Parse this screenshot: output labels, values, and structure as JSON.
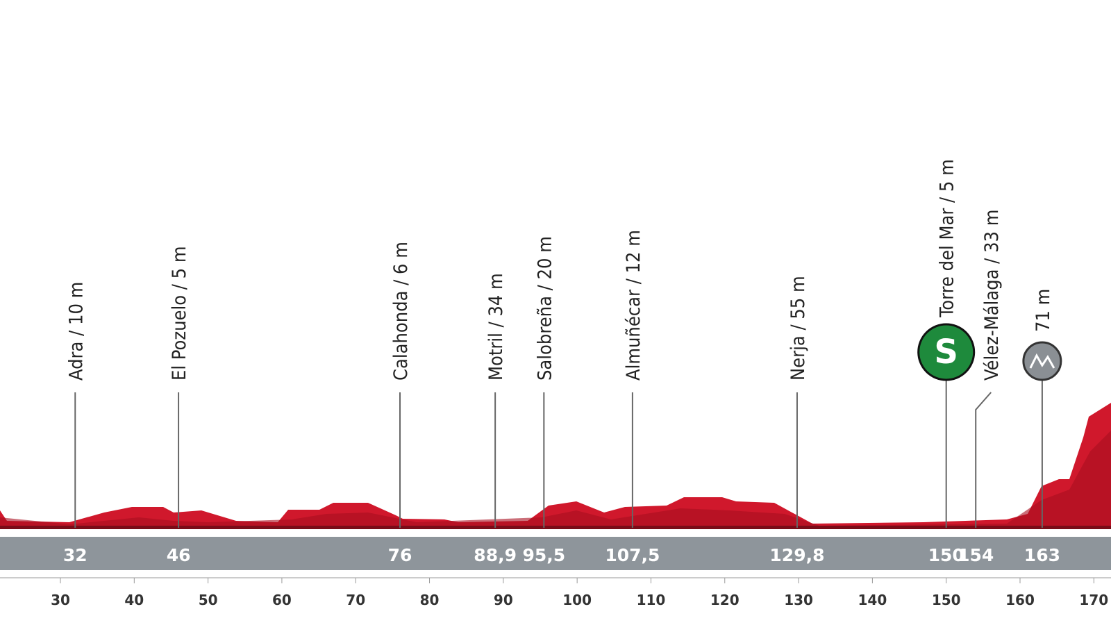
{
  "waypoints": [
    {
      "label": "Adra / 10 m",
      "km": 32
    },
    {
      "label": "El Pozuelo / 5 m",
      "km": 46
    },
    {
      "label": "Calahonda / 6 m",
      "km": 76
    },
    {
      "label": "Motril / 34 m",
      "km": {
        "value": 88.9,
        "label": "88,9"
      }
    },
    {
      "label": "Salobreña / 20 m",
      "km": {
        "value": 95.5,
        "label": "95,5"
      }
    },
    {
      "label": "Almuñécar / 12 m",
      "km": {
        "value": 107.5,
        "label": "107,5"
      }
    },
    {
      "label": "Nerja / 55 m",
      "km": {
        "value": 129.8,
        "label": "129,8"
      }
    },
    {
      "label": "Torre del Mar / 5 m",
      "km": 150,
      "icon": "sprint",
      "icon_text": "S"
    },
    {
      "label": "Vélez-Málaga / 33 m",
      "km": 154
    },
    {
      "label": "71 m",
      "km": 163,
      "icon": "climb"
    }
  ],
  "xticks": [
    30,
    40,
    50,
    60,
    70,
    80,
    90,
    100,
    110,
    120,
    130,
    140,
    150,
    160,
    170
  ]
}
